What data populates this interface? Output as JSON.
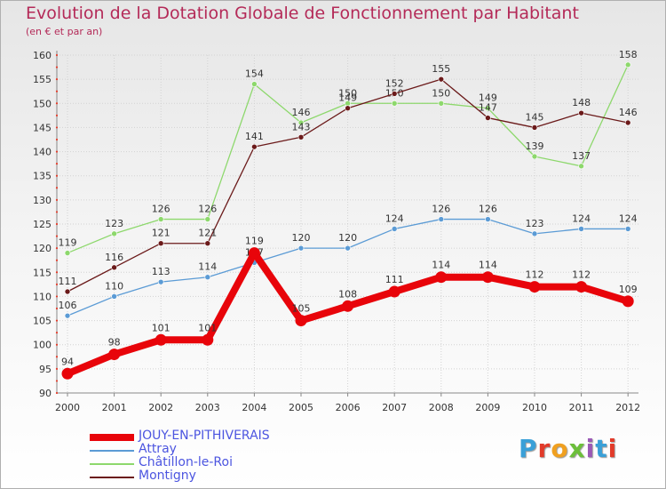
{
  "title": "Evolution de la Dotation Globale de Fonctionnement par Habitant",
  "subtitle": "(en € et par an)",
  "logo": {
    "text": "Proxiti",
    "colors": [
      "#3aa0d8",
      "#e23b2a",
      "#f0a020",
      "#6cbf3a",
      "#9b59b6",
      "#3aa0d8",
      "#e23b2a"
    ]
  },
  "chart_data": {
    "type": "line",
    "x": [
      "2000",
      "2001",
      "2002",
      "2003",
      "2004",
      "2005",
      "2006",
      "2007",
      "2008",
      "2009",
      "2010",
      "2011",
      "2012"
    ],
    "ylim": [
      90,
      160
    ],
    "yticks": [
      90,
      95,
      100,
      105,
      110,
      115,
      120,
      125,
      130,
      135,
      140,
      145,
      150,
      155,
      160
    ],
    "grid": true,
    "legend_position": "bottom-left",
    "series": [
      {
        "name": "JOUY-EN-PITHIVERAIS",
        "color": "#e8040a",
        "values": [
          94,
          98,
          101,
          101,
          119,
          105,
          108,
          111,
          114,
          114,
          112,
          112,
          109
        ]
      },
      {
        "name": "Attray",
        "color": "#5b9bd5",
        "values": [
          106,
          110,
          113,
          114,
          117,
          120,
          120,
          124,
          126,
          126,
          123,
          124,
          124
        ]
      },
      {
        "name": "Châtillon-le-Roi",
        "color": "#8dd86c",
        "values": [
          119,
          123,
          126,
          126,
          154,
          146,
          150,
          150,
          150,
          149,
          139,
          137,
          158
        ]
      },
      {
        "name": "Montigny",
        "color": "#6b1a1a",
        "values": [
          111,
          116,
          121,
          121,
          141,
          143,
          149,
          152,
          155,
          147,
          145,
          148,
          146
        ]
      }
    ]
  }
}
